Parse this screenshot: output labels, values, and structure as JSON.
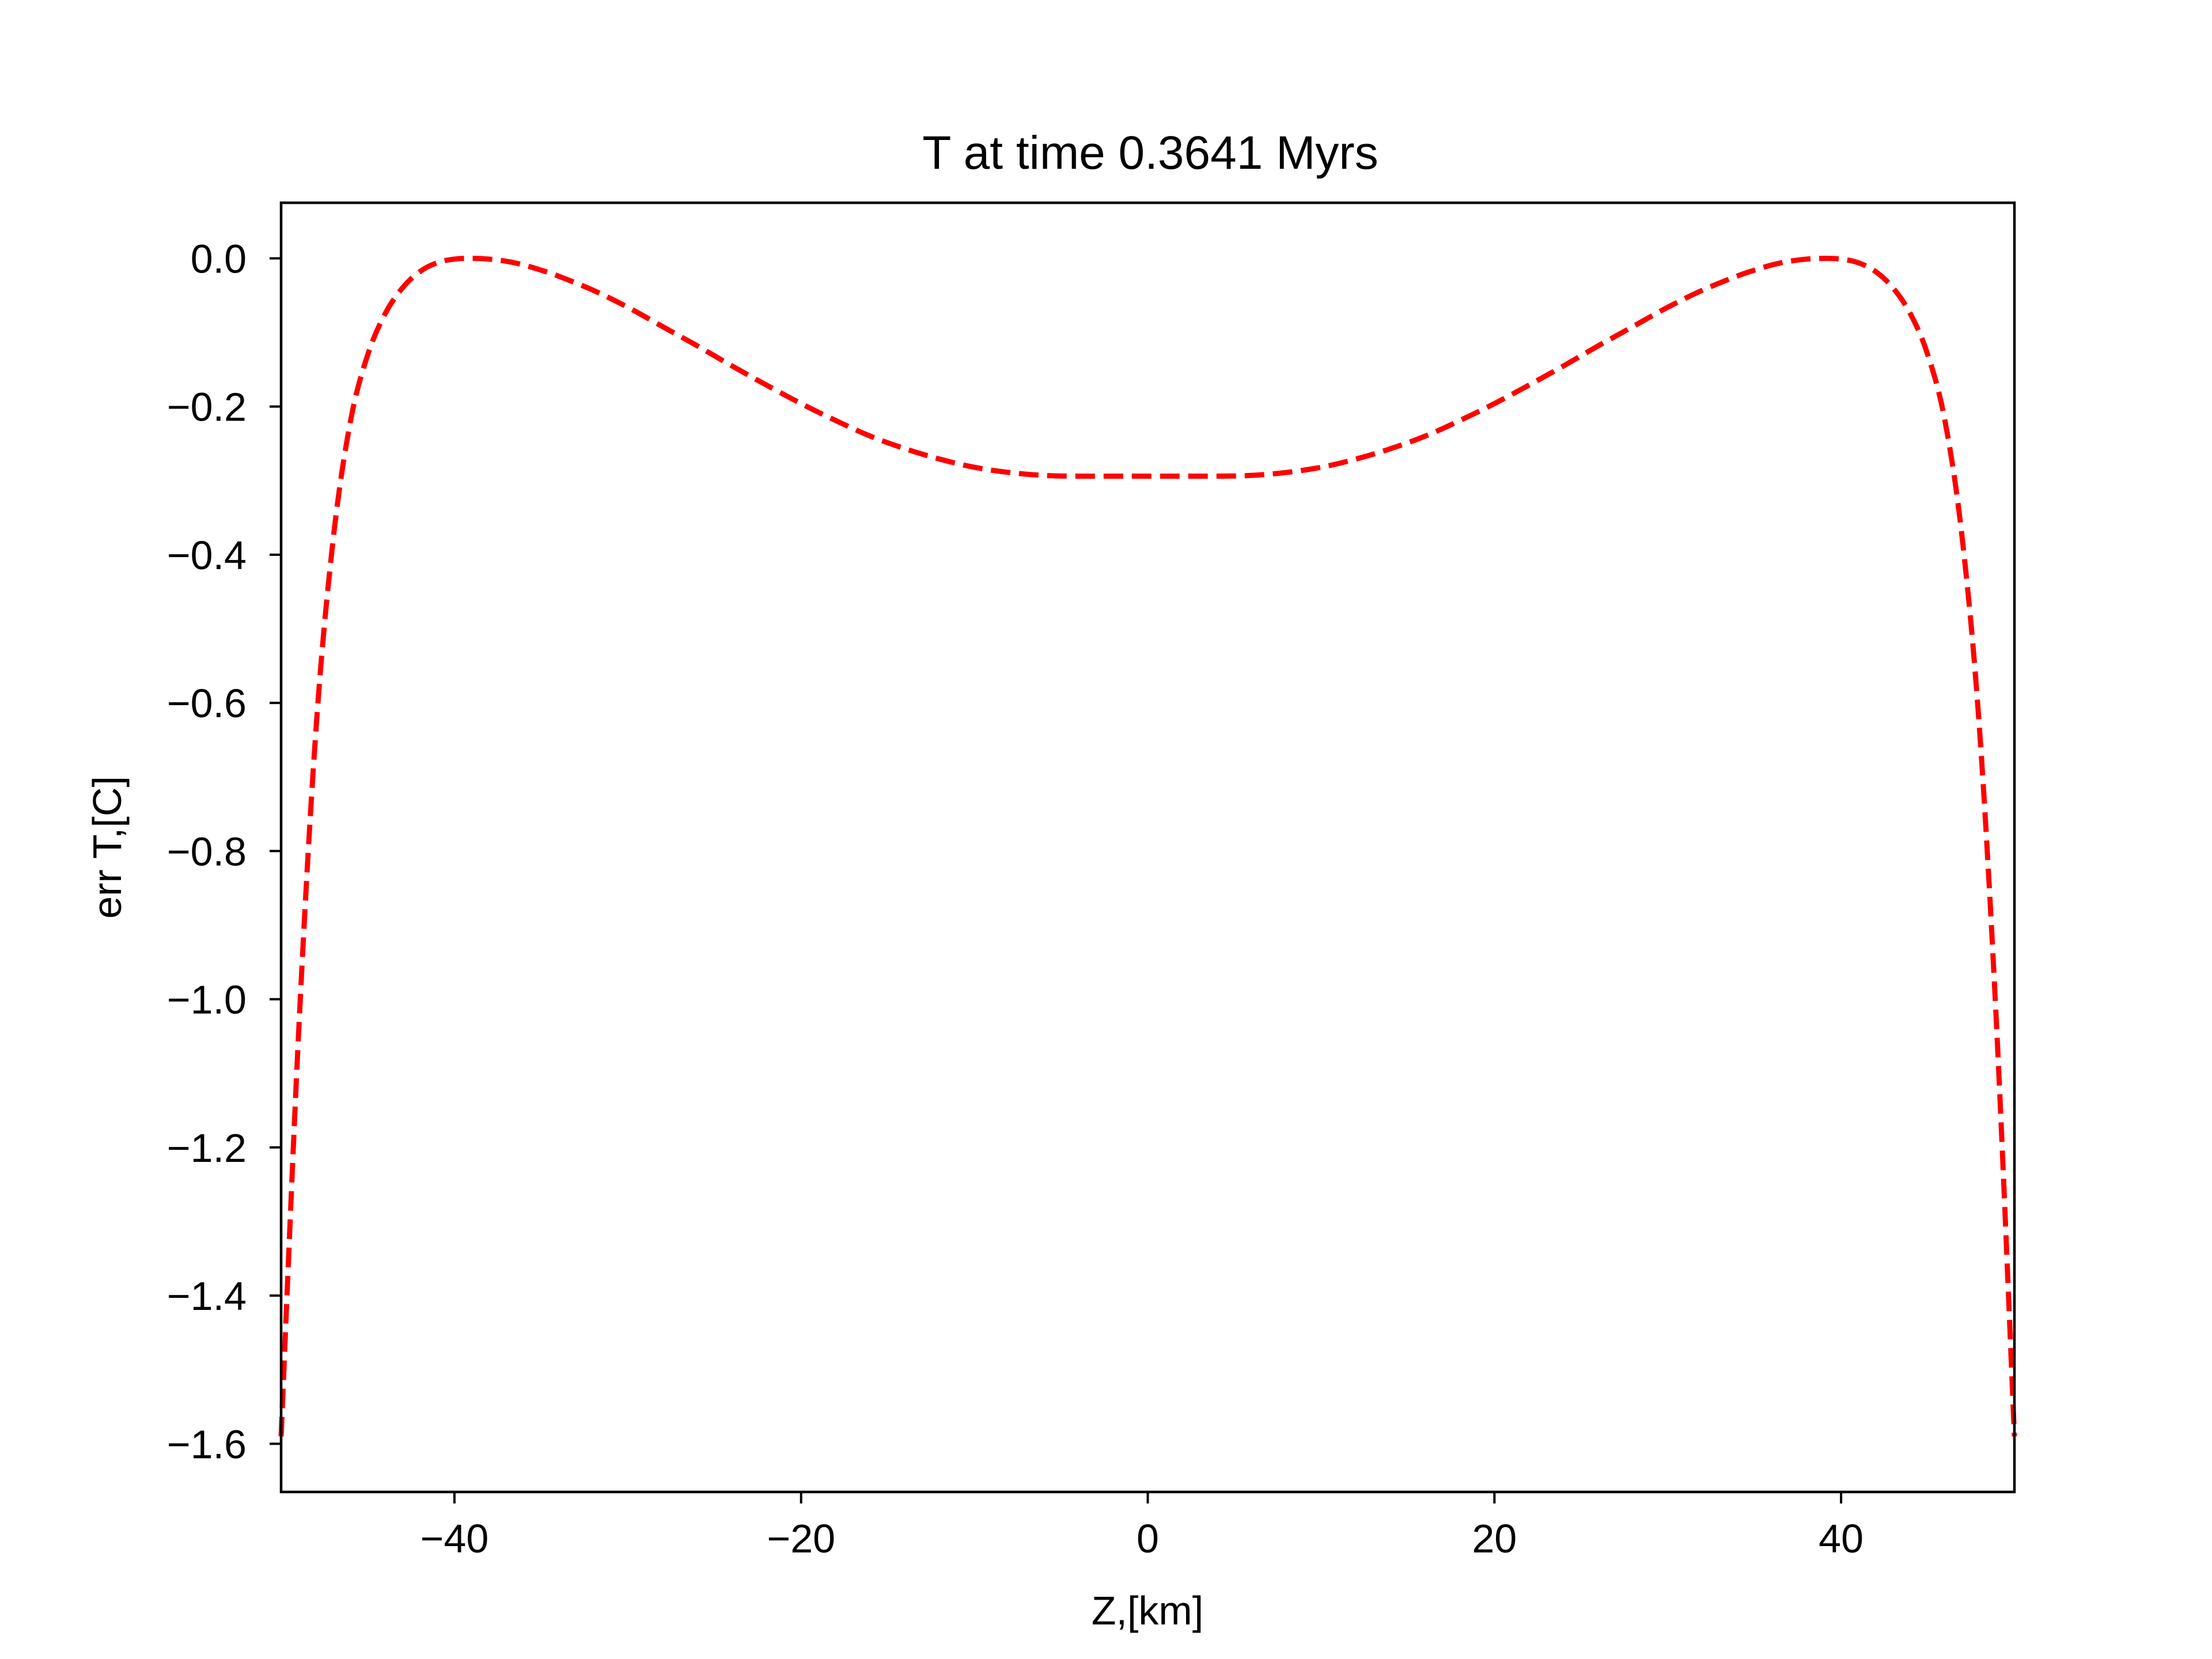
{
  "chart_data": {
    "type": "line",
    "title": "T at time 0.3641 Myrs",
    "xlabel": "Z,[km]",
    "ylabel": "err T,[C]",
    "xlim": [
      -50,
      50
    ],
    "ylim": [
      -1.665,
      0.075
    ],
    "x_ticks": [
      -40,
      -20,
      0,
      20,
      40
    ],
    "x_tick_labels": [
      "−40",
      "−20",
      "0",
      "20",
      "40"
    ],
    "y_ticks": [
      0.0,
      -0.2,
      -0.4,
      -0.6,
      -0.8,
      -1.0,
      -1.2,
      -1.4,
      -1.6
    ],
    "y_tick_labels": [
      "0.0",
      "−0.2",
      "−0.4",
      "−0.6",
      "−0.8",
      "−1.0",
      "−1.2",
      "−1.4",
      "−1.6"
    ],
    "grid": false,
    "series": [
      {
        "color": "#ff0000",
        "linestyle": "dashed",
        "x": [
          -50,
          -49,
          -48,
          -47,
          -46,
          -45,
          -44,
          -43,
          -42,
          -41,
          -40,
          -39,
          -38,
          -37,
          -36,
          -35,
          -34,
          -32,
          -30,
          -28,
          -26,
          -24,
          -22,
          -20,
          -18,
          -16,
          -14,
          -12,
          -10,
          -8,
          -6,
          -4,
          -2,
          0,
          2,
          4,
          6,
          8,
          10,
          12,
          14,
          16,
          18,
          20,
          22,
          24,
          26,
          28,
          30,
          32,
          34,
          35,
          36,
          37,
          38,
          39,
          40,
          41,
          42,
          43,
          44,
          45,
          46,
          47,
          48,
          49,
          50
        ],
        "values": [
          -1.59,
          -1.05,
          -0.64,
          -0.38,
          -0.22,
          -0.13,
          -0.075,
          -0.04,
          -0.018,
          -0.006,
          -0.001,
          0.0,
          -0.001,
          -0.004,
          -0.009,
          -0.016,
          -0.024,
          -0.043,
          -0.066,
          -0.092,
          -0.118,
          -0.145,
          -0.171,
          -0.196,
          -0.219,
          -0.24,
          -0.257,
          -0.271,
          -0.282,
          -0.289,
          -0.293,
          -0.294,
          -0.294,
          -0.294,
          -0.294,
          -0.294,
          -0.293,
          -0.289,
          -0.282,
          -0.271,
          -0.257,
          -0.24,
          -0.219,
          -0.196,
          -0.171,
          -0.145,
          -0.118,
          -0.092,
          -0.066,
          -0.043,
          -0.024,
          -0.016,
          -0.009,
          -0.004,
          -0.001,
          0.0,
          -0.001,
          -0.006,
          -0.018,
          -0.04,
          -0.075,
          -0.13,
          -0.22,
          -0.38,
          -0.64,
          -1.05,
          -1.59
        ]
      }
    ]
  }
}
